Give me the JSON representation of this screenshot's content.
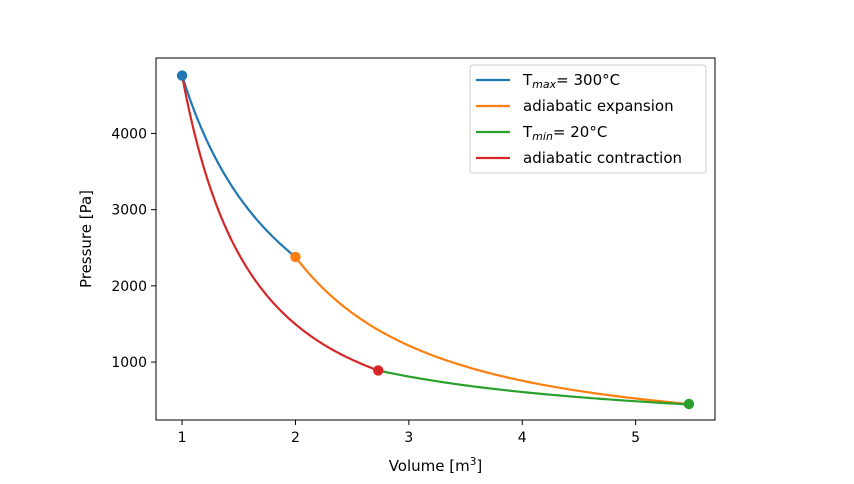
{
  "chart_data": {
    "type": "line",
    "xlabel": "Volume [m",
    "xlabel_sup": "3",
    "xlabel_end": "]",
    "ylabel": "Pressure [Pa]",
    "xlim": [
      0.77,
      5.7
    ],
    "ylim": [
      240,
      4990
    ],
    "xticks": [
      1,
      2,
      3,
      4,
      5
    ],
    "yticks": [
      1000,
      2000,
      3000,
      4000
    ],
    "grid": false,
    "legend_position": "top-right",
    "series": [
      {
        "legend_main": "T",
        "legend_sub": "max",
        "legend_rest": "= 300°C",
        "color": "#1f77b4",
        "curve": "isotherm",
        "x_start": 1.0,
        "y_start": 4760,
        "x_end": 2.0,
        "y_end": 2380
      },
      {
        "legend_main": "adiabatic expansion",
        "legend_sub": "",
        "legend_rest": "",
        "color": "#ff7f0e",
        "curve": "adiabatic",
        "x_start": 2.0,
        "y_start": 2380,
        "x_end": 5.47,
        "y_end": 450
      },
      {
        "legend_main": "T",
        "legend_sub": "min",
        "legend_rest": "= 20°C",
        "color": "#2ca02c",
        "curve": "isotherm",
        "x_start": 2.73,
        "y_start": 890,
        "x_end": 5.47,
        "y_end": 450
      },
      {
        "legend_main": "adiabatic contraction",
        "legend_sub": "",
        "legend_rest": "",
        "color": "#d62728",
        "curve": "adiabatic",
        "x_start": 2.73,
        "y_start": 890,
        "x_end": 1.0,
        "y_end": 4760
      }
    ],
    "points": [
      {
        "x": 1.0,
        "y": 4760,
        "color": "#1f77b4"
      },
      {
        "x": 2.0,
        "y": 2380,
        "color": "#ff7f0e"
      },
      {
        "x": 5.47,
        "y": 450,
        "color": "#2ca02c"
      },
      {
        "x": 2.73,
        "y": 890,
        "color": "#d62728"
      }
    ]
  }
}
